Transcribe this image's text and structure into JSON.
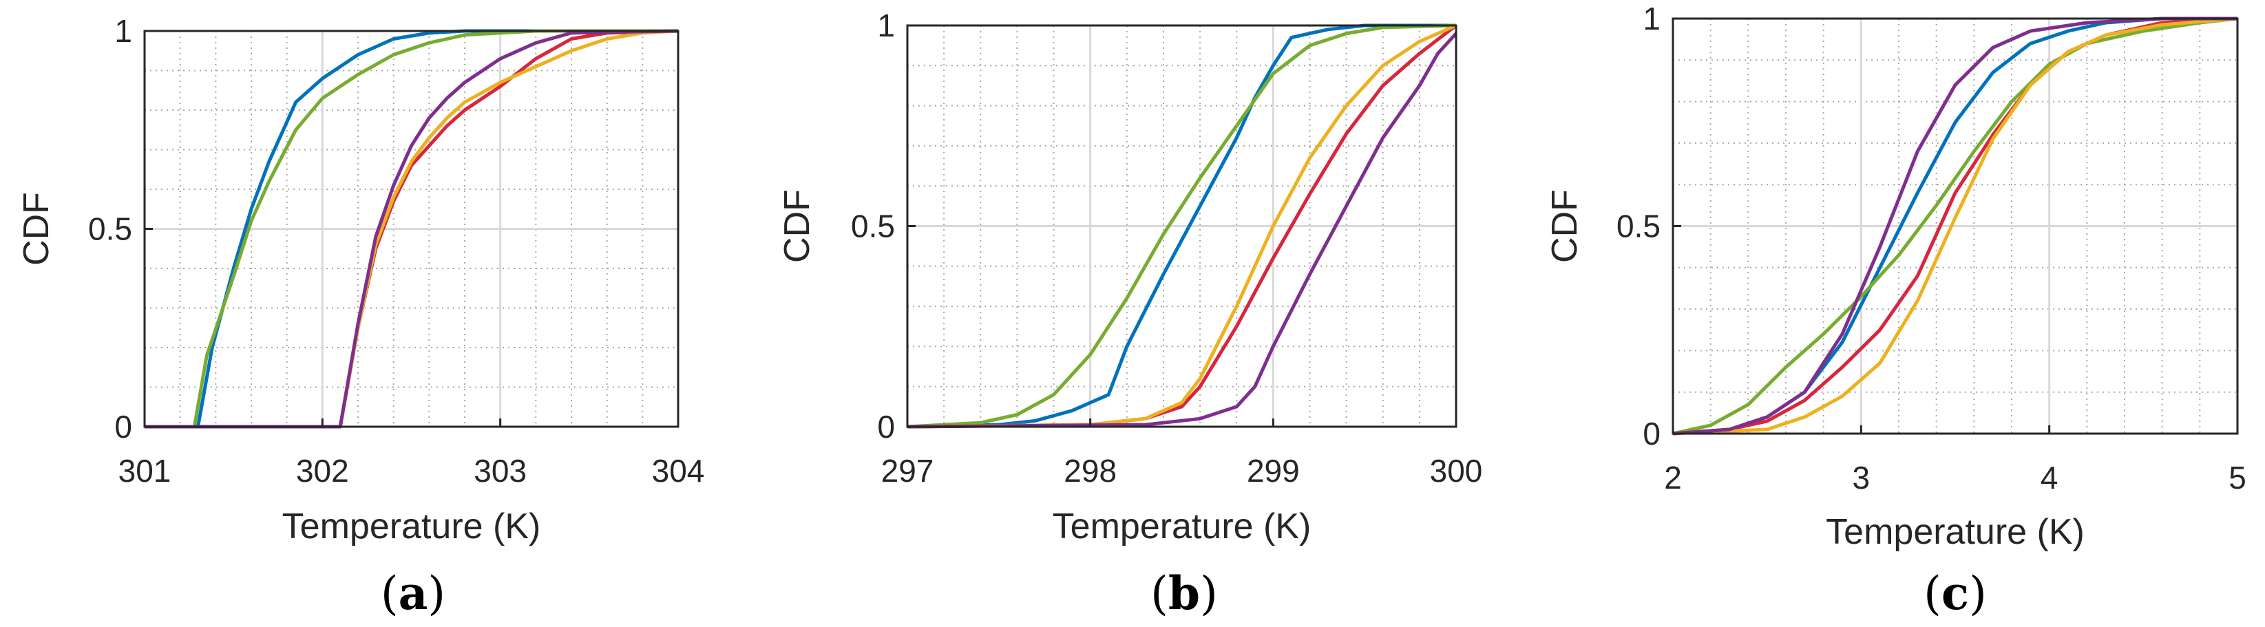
{
  "colors": {
    "blue": "#0072BD",
    "green": "#77AC30",
    "red": "#D7263D",
    "orange": "#EDB120",
    "purple": "#7E2F8E",
    "grid_major": "#d9d9d9",
    "grid_minor": "#a8a8a8",
    "axis": "#262626"
  },
  "chart_data": [
    {
      "type": "line",
      "panel": "a",
      "caption_open": "(",
      "caption_letter": "a",
      "caption_close": ")",
      "title": "",
      "xlabel": "Temperature (K)",
      "ylabel": "CDF",
      "xlim": [
        301,
        304
      ],
      "ylim": [
        0,
        1
      ],
      "xticks": [
        301,
        302,
        303,
        304
      ],
      "xticklabels": [
        "301",
        "302",
        "303",
        "304"
      ],
      "yticks": [
        0,
        0.5,
        1
      ],
      "yticklabels": [
        "0",
        "0.5",
        "1"
      ],
      "grid": true,
      "minor_grid": true,
      "series": [
        {
          "name": "blue",
          "color": "blue",
          "x": [
            301,
            301.3,
            301.38,
            301.5,
            301.6,
            301.7,
            301.85,
            302.0,
            302.2,
            302.4,
            302.6,
            302.8,
            303.0,
            304.0
          ],
          "y": [
            0,
            0,
            0.2,
            0.4,
            0.55,
            0.67,
            0.82,
            0.88,
            0.94,
            0.98,
            0.995,
            1.0,
            1.0,
            1.0
          ]
        },
        {
          "name": "green",
          "color": "green",
          "x": [
            301,
            301.28,
            301.35,
            301.5,
            301.6,
            301.7,
            301.85,
            302.0,
            302.2,
            302.4,
            302.6,
            302.8,
            303.0,
            303.2,
            304.0
          ],
          "y": [
            0,
            0,
            0.18,
            0.38,
            0.52,
            0.62,
            0.75,
            0.83,
            0.89,
            0.94,
            0.97,
            0.99,
            0.995,
            1.0,
            1.0
          ]
        },
        {
          "name": "red",
          "color": "red",
          "x": [
            301,
            302.1,
            302.2,
            302.3,
            302.4,
            302.5,
            302.6,
            302.7,
            302.8,
            303.0,
            303.2,
            303.4,
            303.6,
            304.0
          ],
          "y": [
            0,
            0,
            0.25,
            0.45,
            0.57,
            0.66,
            0.71,
            0.76,
            0.8,
            0.86,
            0.93,
            0.98,
            0.995,
            1.0
          ]
        },
        {
          "name": "orange",
          "color": "orange",
          "x": [
            301,
            302.1,
            302.2,
            302.3,
            302.4,
            302.5,
            302.6,
            302.7,
            302.8,
            303.0,
            303.2,
            303.4,
            303.6,
            303.8,
            304.0
          ],
          "y": [
            0,
            0,
            0.25,
            0.46,
            0.58,
            0.67,
            0.73,
            0.78,
            0.82,
            0.87,
            0.91,
            0.95,
            0.98,
            0.995,
            1.0
          ]
        },
        {
          "name": "purple",
          "color": "purple",
          "x": [
            301,
            302.1,
            302.2,
            302.3,
            302.4,
            302.5,
            302.6,
            302.7,
            302.8,
            303.0,
            303.2,
            303.4,
            304.0
          ],
          "y": [
            0,
            0,
            0.26,
            0.48,
            0.61,
            0.71,
            0.78,
            0.83,
            0.87,
            0.93,
            0.97,
            0.995,
            1.0
          ]
        }
      ]
    },
    {
      "type": "line",
      "panel": "b",
      "caption_open": "(",
      "caption_letter": "b",
      "caption_close": ")",
      "title": "",
      "xlabel": "Temperature (K)",
      "ylabel": "CDF",
      "xlim": [
        297,
        300
      ],
      "ylim": [
        0,
        1
      ],
      "xticks": [
        297,
        298,
        299,
        300
      ],
      "xticklabels": [
        "297",
        "298",
        "299",
        "300"
      ],
      "yticks": [
        0,
        0.5,
        1
      ],
      "yticklabels": [
        "0",
        "0.5",
        "1"
      ],
      "grid": true,
      "minor_grid": true,
      "series": [
        {
          "name": "blue",
          "color": "blue",
          "x": [
            297,
            297.5,
            297.7,
            297.9,
            298.1,
            298.2,
            298.4,
            298.6,
            298.8,
            298.9,
            299.0,
            299.1,
            299.3,
            299.5,
            300.0
          ],
          "y": [
            0,
            0.005,
            0.015,
            0.04,
            0.08,
            0.2,
            0.38,
            0.55,
            0.72,
            0.82,
            0.9,
            0.97,
            0.99,
            1.0,
            1.0
          ]
        },
        {
          "name": "green",
          "color": "green",
          "x": [
            297,
            297.4,
            297.6,
            297.8,
            298.0,
            298.2,
            298.4,
            298.6,
            298.8,
            299.0,
            299.2,
            299.4,
            299.6,
            300.0
          ],
          "y": [
            0,
            0.01,
            0.03,
            0.08,
            0.18,
            0.32,
            0.48,
            0.62,
            0.75,
            0.88,
            0.95,
            0.98,
            0.995,
            1.0
          ]
        },
        {
          "name": "red",
          "color": "red",
          "x": [
            297,
            298.0,
            298.3,
            298.5,
            298.6,
            298.8,
            299.0,
            299.2,
            299.4,
            299.6,
            299.8,
            300.0
          ],
          "y": [
            0,
            0.005,
            0.02,
            0.05,
            0.1,
            0.25,
            0.42,
            0.58,
            0.73,
            0.85,
            0.93,
            1.0
          ]
        },
        {
          "name": "orange",
          "color": "orange",
          "x": [
            297,
            298.0,
            298.3,
            298.5,
            298.6,
            298.8,
            299.0,
            299.2,
            299.4,
            299.6,
            299.8,
            300.0
          ],
          "y": [
            0,
            0.005,
            0.02,
            0.06,
            0.12,
            0.3,
            0.5,
            0.67,
            0.8,
            0.9,
            0.96,
            1.0
          ]
        },
        {
          "name": "purple",
          "color": "purple",
          "x": [
            297,
            298.3,
            298.6,
            298.8,
            298.9,
            299.0,
            299.2,
            299.4,
            299.6,
            299.8,
            299.9,
            300.0
          ],
          "y": [
            0,
            0.005,
            0.02,
            0.05,
            0.1,
            0.2,
            0.38,
            0.55,
            0.72,
            0.85,
            0.93,
            0.98
          ]
        }
      ]
    },
    {
      "type": "line",
      "panel": "c",
      "caption_open": "(",
      "caption_letter": "c",
      "caption_close": ")",
      "title": "",
      "xlabel": "Temperature (K)",
      "ylabel": "CDF",
      "xlim": [
        2,
        5
      ],
      "ylim": [
        0,
        1
      ],
      "xticks": [
        2,
        3,
        4,
        5
      ],
      "xticklabels": [
        "2",
        "3",
        "4",
        "5"
      ],
      "yticks": [
        0,
        0.5,
        1
      ],
      "yticklabels": [
        "0",
        "0.5",
        "1"
      ],
      "grid": true,
      "minor_grid": true,
      "series": [
        {
          "name": "blue",
          "color": "blue",
          "x": [
            2,
            2.3,
            2.5,
            2.7,
            2.9,
            3.1,
            3.3,
            3.5,
            3.7,
            3.9,
            4.1,
            4.3,
            4.6,
            5.0
          ],
          "y": [
            0,
            0.01,
            0.04,
            0.1,
            0.22,
            0.4,
            0.58,
            0.75,
            0.87,
            0.94,
            0.97,
            0.99,
            1.0,
            1.0
          ]
        },
        {
          "name": "green",
          "color": "green",
          "x": [
            2,
            2.2,
            2.4,
            2.6,
            2.8,
            3.0,
            3.2,
            3.4,
            3.6,
            3.8,
            4.0,
            4.2,
            4.5,
            4.8,
            5.0
          ],
          "y": [
            0,
            0.02,
            0.07,
            0.16,
            0.24,
            0.33,
            0.43,
            0.55,
            0.68,
            0.8,
            0.89,
            0.94,
            0.97,
            0.99,
            1.0
          ]
        },
        {
          "name": "red",
          "color": "red",
          "x": [
            2,
            2.3,
            2.5,
            2.7,
            2.9,
            3.1,
            3.3,
            3.5,
            3.7,
            3.9,
            4.1,
            4.3,
            4.6,
            5.0
          ],
          "y": [
            0,
            0.01,
            0.03,
            0.08,
            0.16,
            0.25,
            0.38,
            0.58,
            0.72,
            0.84,
            0.92,
            0.96,
            0.99,
            1.0
          ]
        },
        {
          "name": "orange",
          "color": "orange",
          "x": [
            2,
            2.5,
            2.7,
            2.9,
            3.1,
            3.3,
            3.5,
            3.7,
            3.9,
            4.1,
            4.3,
            4.6,
            5.0
          ],
          "y": [
            0,
            0.01,
            0.04,
            0.09,
            0.17,
            0.32,
            0.52,
            0.71,
            0.84,
            0.92,
            0.96,
            0.985,
            1.0
          ]
        },
        {
          "name": "purple",
          "color": "purple",
          "x": [
            2,
            2.3,
            2.5,
            2.7,
            2.9,
            3.1,
            3.3,
            3.5,
            3.7,
            3.9,
            4.2,
            4.6,
            5.0
          ],
          "y": [
            0,
            0.01,
            0.04,
            0.1,
            0.24,
            0.45,
            0.68,
            0.84,
            0.93,
            0.97,
            0.99,
            1.0,
            1.0
          ]
        }
      ]
    }
  ]
}
